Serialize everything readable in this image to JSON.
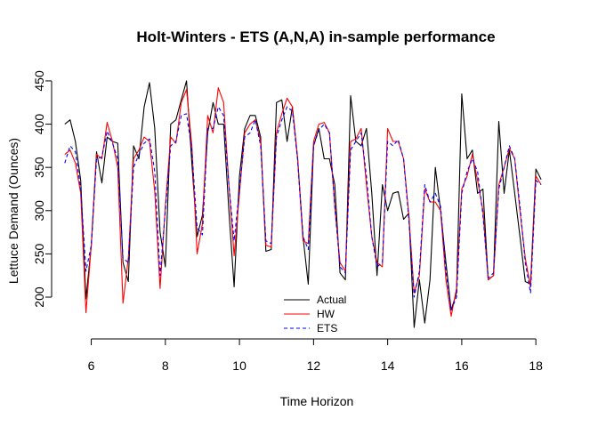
{
  "chart_data": {
    "type": "line",
    "title": "Holt-Winters - ETS (A,N,A) in-sample performance",
    "xlabel": "Time Horizon",
    "ylabel": "Lettuce Demand (Ounces)",
    "xlim": [
      5.29,
      18.14
    ],
    "ylim": [
      163,
      452
    ],
    "xticks": [
      6,
      8,
      10,
      12,
      14,
      16,
      18
    ],
    "yticks": [
      200,
      250,
      300,
      350,
      400,
      450
    ],
    "grid": false,
    "legend": "bottom-center",
    "x": [
      5.2857,
      5.4286,
      5.5714,
      5.7143,
      5.8571,
      6.0,
      6.1429,
      6.2857,
      6.4286,
      6.5714,
      6.7143,
      6.8571,
      7.0,
      7.1429,
      7.2857,
      7.4286,
      7.5714,
      7.7143,
      7.8571,
      8.0,
      8.1429,
      8.2857,
      8.4286,
      8.5714,
      8.7143,
      8.8571,
      9.0,
      9.1429,
      9.2857,
      9.4286,
      9.5714,
      9.7143,
      9.8571,
      10.0,
      10.1429,
      10.2857,
      10.4286,
      10.5714,
      10.7143,
      10.8571,
      11.0,
      11.1429,
      11.2857,
      11.4286,
      11.5714,
      11.7143,
      11.8571,
      12.0,
      12.1429,
      12.2857,
      12.4286,
      12.5714,
      12.7143,
      12.8571,
      13.0,
      13.1429,
      13.2857,
      13.4286,
      13.5714,
      13.7143,
      13.8571,
      14.0,
      14.1429,
      14.2857,
      14.4286,
      14.5714,
      14.7143,
      14.8571,
      15.0,
      15.1429,
      15.2857,
      15.4286,
      15.5714,
      15.7143,
      15.8571,
      16.0,
      16.1429,
      16.2857,
      16.4286,
      16.5714,
      16.7143,
      16.8571,
      17.0,
      17.1429,
      17.2857,
      17.4286,
      17.5714,
      17.7143,
      17.8571,
      18.0,
      18.1429
    ],
    "series": [
      {
        "name": "Actual",
        "color": "#000000",
        "dash": "solid",
        "values": [
          400,
          405,
          380,
          335,
          198,
          260,
          368,
          332,
          385,
          380,
          378,
          240,
          218,
          375,
          360,
          420,
          448,
          395,
          275,
          235,
          400,
          405,
          428,
          450,
          355,
          270,
          295,
          390,
          425,
          400,
          400,
          300,
          212,
          340,
          395,
          410,
          410,
          385,
          253,
          255,
          425,
          428,
          380,
          420,
          360,
          270,
          215,
          375,
          395,
          360,
          360,
          330,
          228,
          220,
          433,
          380,
          375,
          395,
          320,
          225,
          330,
          300,
          320,
          322,
          290,
          297,
          165,
          220,
          170,
          220,
          350,
          300,
          240,
          185,
          205,
          435,
          360,
          370,
          320,
          325,
          220,
          225,
          403,
          320,
          370,
          320,
          270,
          218,
          215,
          348,
          336
        ]
      },
      {
        "name": "HW",
        "color": "#ff0000",
        "dash": "solid",
        "values": [
          365,
          370,
          355,
          320,
          182,
          260,
          365,
          360,
          402,
          380,
          350,
          193,
          245,
          360,
          370,
          385,
          380,
          322,
          210,
          305,
          385,
          378,
          425,
          440,
          375,
          250,
          285,
          410,
          390,
          442,
          425,
          330,
          248,
          320,
          390,
          400,
          405,
          380,
          260,
          258,
          390,
          412,
          430,
          420,
          360,
          265,
          262,
          380,
          400,
          402,
          390,
          305,
          240,
          230,
          380,
          383,
          395,
          330,
          270,
          240,
          235,
          395,
          380,
          380,
          360,
          295,
          205,
          225,
          325,
          310,
          310,
          300,
          220,
          178,
          210,
          325,
          340,
          365,
          335,
          300,
          220,
          225,
          330,
          350,
          372,
          360,
          300,
          245,
          212,
          340,
          330
        ]
      },
      {
        "name": "ETS",
        "color": "#0000ff",
        "dash": "dashed",
        "values": [
          355,
          375,
          368,
          325,
          230,
          260,
          360,
          362,
          392,
          378,
          360,
          245,
          240,
          350,
          365,
          378,
          383,
          345,
          225,
          300,
          375,
          380,
          410,
          412,
          370,
          280,
          272,
          395,
          395,
          420,
          410,
          330,
          265,
          325,
          385,
          390,
          405,
          375,
          265,
          262,
          385,
          405,
          420,
          415,
          358,
          270,
          255,
          375,
          393,
          400,
          390,
          305,
          235,
          228,
          370,
          380,
          390,
          340,
          270,
          235,
          240,
          380,
          375,
          382,
          360,
          290,
          200,
          230,
          330,
          310,
          320,
          305,
          230,
          185,
          200,
          320,
          345,
          360,
          345,
          295,
          222,
          228,
          325,
          350,
          375,
          360,
          305,
          240,
          205,
          335,
          330
        ]
      }
    ]
  }
}
